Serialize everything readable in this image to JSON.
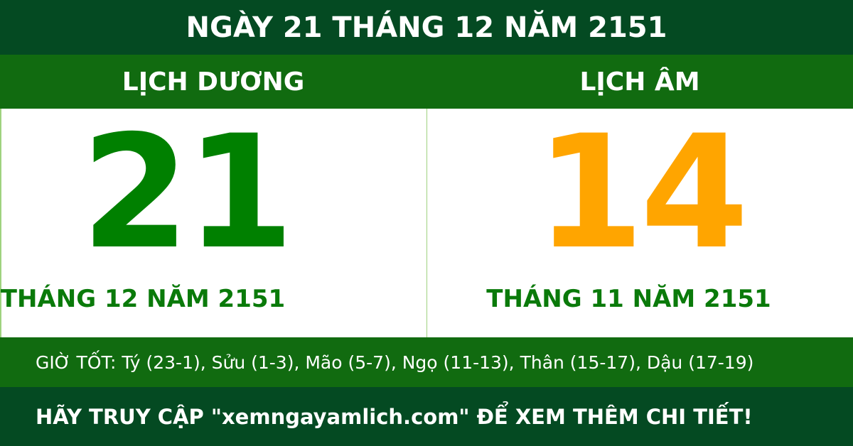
{
  "title": "NGÀY 21 THÁNG 12 NĂM 2151",
  "solar": {
    "label": "LỊCH DƯƠNG",
    "day": "21",
    "month_year": "THÁNG 12 NĂM 2151"
  },
  "lunar": {
    "label": "LỊCH ÂM",
    "day": "14",
    "month_year": "THÁNG 11 NĂM 2151"
  },
  "good_hours": "GIỜ TỐT: Tý (23-1), Sửu (1-3), Mão (5-7), Ngọ (11-13), Thân (15-17), Dậu (17-19)",
  "footer": "HÃY TRUY CẬP \"xemngayamlich.com\" ĐỂ XEM THÊM CHI TIẾT!",
  "colors": {
    "dark_green": "#044a22",
    "green": "#116b10",
    "solar_day": "#008000",
    "lunar_day": "#ffa500"
  }
}
